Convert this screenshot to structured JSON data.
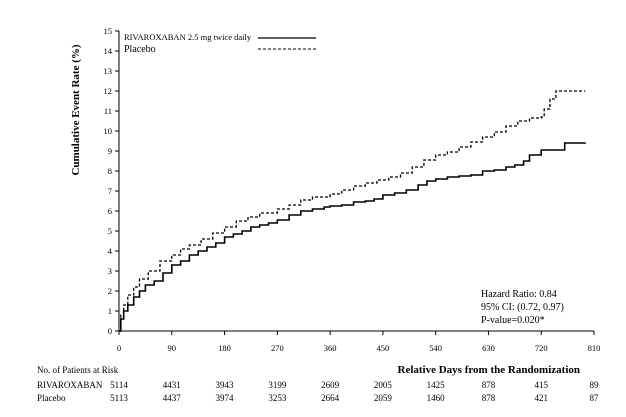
{
  "chart_data": {
    "type": "line",
    "title": "",
    "ylabel": "Cumulative Event Rate (%)",
    "xlabel": "Relative Days from the Randomization",
    "ylim": [
      0,
      15
    ],
    "xlim": [
      0,
      810
    ],
    "y_ticks": [
      0,
      1,
      2,
      3,
      4,
      5,
      6,
      7,
      8,
      9,
      10,
      11,
      12,
      13,
      14,
      15
    ],
    "x_ticks": [
      0,
      90,
      180,
      270,
      360,
      450,
      540,
      630,
      720,
      810
    ],
    "grid": false,
    "legend_position": "top-left",
    "series": [
      {
        "name": "RIVAROXABAN 2.5 mg twice daily",
        "line_style": "solid",
        "color": "#000000",
        "points": [
          [
            0,
            0
          ],
          [
            3,
            0.6
          ],
          [
            8,
            1.0
          ],
          [
            15,
            1.3
          ],
          [
            25,
            1.7
          ],
          [
            35,
            2.0
          ],
          [
            45,
            2.3
          ],
          [
            60,
            2.5
          ],
          [
            75,
            2.9
          ],
          [
            90,
            3.3
          ],
          [
            105,
            3.5
          ],
          [
            120,
            3.8
          ],
          [
            135,
            4.0
          ],
          [
            150,
            4.2
          ],
          [
            165,
            4.4
          ],
          [
            180,
            4.7
          ],
          [
            195,
            4.85
          ],
          [
            210,
            5.0
          ],
          [
            225,
            5.2
          ],
          [
            240,
            5.3
          ],
          [
            255,
            5.4
          ],
          [
            270,
            5.55
          ],
          [
            290,
            5.8
          ],
          [
            310,
            6.0
          ],
          [
            330,
            6.1
          ],
          [
            350,
            6.2
          ],
          [
            360,
            6.25
          ],
          [
            380,
            6.3
          ],
          [
            400,
            6.45
          ],
          [
            420,
            6.5
          ],
          [
            435,
            6.6
          ],
          [
            450,
            6.8
          ],
          [
            470,
            6.9
          ],
          [
            490,
            7.05
          ],
          [
            510,
            7.3
          ],
          [
            525,
            7.5
          ],
          [
            540,
            7.6
          ],
          [
            560,
            7.7
          ],
          [
            580,
            7.75
          ],
          [
            600,
            7.8
          ],
          [
            620,
            8.0
          ],
          [
            640,
            8.05
          ],
          [
            660,
            8.2
          ],
          [
            675,
            8.3
          ],
          [
            690,
            8.5
          ],
          [
            700,
            8.8
          ],
          [
            720,
            9.05
          ],
          [
            750,
            9.05
          ],
          [
            760,
            9.4
          ],
          [
            780,
            9.4
          ],
          [
            795,
            9.42
          ]
        ]
      },
      {
        "name": "Placebo",
        "line_style": "dashed",
        "color": "#000000",
        "points": [
          [
            0,
            0
          ],
          [
            3,
            0.8
          ],
          [
            8,
            1.3
          ],
          [
            15,
            1.8
          ],
          [
            25,
            2.2
          ],
          [
            35,
            2.6
          ],
          [
            50,
            3.0
          ],
          [
            70,
            3.5
          ],
          [
            90,
            3.8
          ],
          [
            105,
            4.1
          ],
          [
            120,
            4.3
          ],
          [
            140,
            4.6
          ],
          [
            160,
            4.9
          ],
          [
            180,
            5.2
          ],
          [
            200,
            5.5
          ],
          [
            220,
            5.7
          ],
          [
            240,
            5.9
          ],
          [
            270,
            6.1
          ],
          [
            290,
            6.3
          ],
          [
            310,
            6.55
          ],
          [
            330,
            6.7
          ],
          [
            360,
            6.85
          ],
          [
            380,
            7.05
          ],
          [
            400,
            7.25
          ],
          [
            420,
            7.4
          ],
          [
            440,
            7.55
          ],
          [
            460,
            7.7
          ],
          [
            480,
            7.9
          ],
          [
            500,
            8.2
          ],
          [
            520,
            8.55
          ],
          [
            540,
            8.8
          ],
          [
            560,
            8.95
          ],
          [
            580,
            9.2
          ],
          [
            600,
            9.45
          ],
          [
            620,
            9.7
          ],
          [
            640,
            9.95
          ],
          [
            660,
            10.25
          ],
          [
            680,
            10.5
          ],
          [
            700,
            10.65
          ],
          [
            720,
            10.7
          ],
          [
            725,
            11.1
          ],
          [
            735,
            11.6
          ],
          [
            745,
            12.0
          ],
          [
            770,
            12.0
          ],
          [
            795,
            12.0
          ]
        ]
      }
    ],
    "legend": [
      {
        "label": "RIVAROXABAN 2.5 mg twice daily",
        "line_style": "solid"
      },
      {
        "label": "Placebo",
        "line_style": "dashed"
      }
    ],
    "annotations": {
      "hazard_ratio": "Hazard Ratio: 0.84",
      "ci": "95% CI:  (0.72, 0.97)",
      "p_value": "P-value=0.020*"
    },
    "risk_table": {
      "header": "No. of Patients at Risk",
      "rows": [
        {
          "label": "RIVAROXABAN",
          "values": [
            "5114",
            "4431",
            "3943",
            "3199",
            "2609",
            "2005",
            "1425",
            "878",
            "415",
            "89"
          ]
        },
        {
          "label": "Placebo",
          "values": [
            "5113",
            "4437",
            "3974",
            "3253",
            "2664",
            "2059",
            "1460",
            "878",
            "421",
            "87"
          ]
        }
      ]
    }
  }
}
